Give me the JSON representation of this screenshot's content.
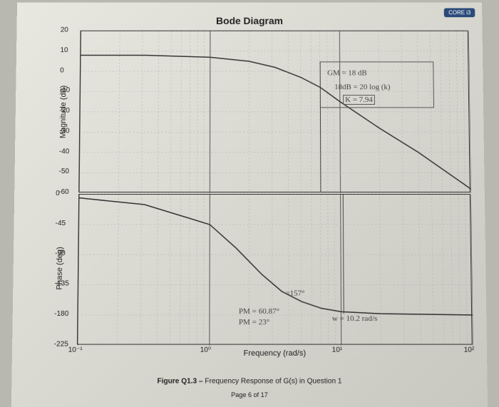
{
  "title": "Bode Diagram",
  "badge": "CORE i3",
  "xlabel": "Frequency (rad/s)",
  "caption_prefix": "Figure Q1.3 – ",
  "caption_text": "Frequency Response of G(s) in Question 1",
  "page": "Page 6 of 17",
  "magnitude": {
    "ylabel": "Magnitude (dB)",
    "ylim": [
      -60,
      20
    ],
    "yticks": [
      20,
      10,
      0,
      -10,
      -20,
      -30,
      -40,
      -50,
      -60
    ],
    "grid_color": "#888",
    "line_color": "#333",
    "line_width": 1.5,
    "background": "transparent",
    "freq_log": [
      -1,
      -0.5,
      0,
      0.3,
      0.5,
      0.7,
      0.85,
      1,
      1.3,
      1.6,
      2
    ],
    "mag_db": [
      8,
      8,
      7,
      5,
      2,
      -3,
      -8,
      -15,
      -28,
      -40,
      -58
    ]
  },
  "phase": {
    "ylabel": "Phase (deg)",
    "ylim": [
      -225,
      0
    ],
    "yticks": [
      0,
      -45,
      -90,
      -135,
      -180,
      -225
    ],
    "grid_color": "#888",
    "line_color": "#333",
    "line_width": 1.5,
    "freq_log": [
      -1,
      -0.5,
      0,
      0.2,
      0.4,
      0.55,
      0.7,
      0.85,
      1,
      1.3,
      2
    ],
    "phase_deg": [
      -5,
      -15,
      -45,
      -80,
      -120,
      -145,
      -160,
      -170,
      -175,
      -178,
      -180
    ]
  },
  "xaxis": {
    "xlim_log": [
      -1,
      2
    ],
    "xticks_log": [
      -1,
      0,
      1,
      2
    ],
    "xtick_labels": [
      "10⁻¹",
      "10⁰",
      "10¹",
      "10²"
    ]
  },
  "annotations": {
    "gm": "GM = 18 dB",
    "eq": "18dB = 20 log (k)",
    "k": "K = 7.94",
    "pm1": "PM = 60.87°",
    "pm2": "PM = 23°",
    "pm_mark": "=157°",
    "w": "w = 10.2 rad/s"
  },
  "colors": {
    "paper": "#d8d8d0",
    "ink": "#222",
    "handwriting": "#444",
    "box": "#555"
  }
}
